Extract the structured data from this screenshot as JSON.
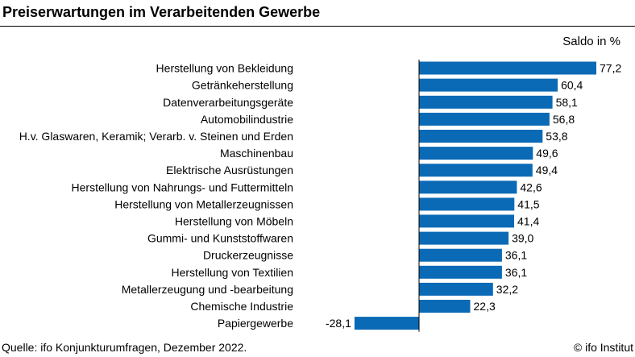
{
  "chart_data": {
    "type": "bar",
    "orientation": "horizontal",
    "title": "Preiserwartungen im Verarbeitenden Gewerbe",
    "unit_label": "Saldo in %",
    "categories": [
      "Herstellung von Bekleidung",
      "Getränkeherstellung",
      "Datenverarbeitungsgeräte",
      "Automobilindustrie",
      "H.v. Glaswaren, Keramik; Verarb. v. Steinen und Erden",
      "Maschinenbau",
      "Elektrische Ausrüstungen",
      "Herstellung von Nahrungs- und Futtermitteln",
      "Herstellung von Metallerzeugnissen",
      "Herstellung von Möbeln",
      "Gummi- und Kunststoffwaren",
      "Druckerzeugnisse",
      "Herstellung von Textilien",
      "Metallerzeugung und -bearbeitung",
      "Chemische Industrie",
      "Papiergewerbe"
    ],
    "values": [
      77.2,
      60.4,
      58.1,
      56.8,
      53.8,
      49.6,
      49.4,
      42.6,
      41.5,
      41.4,
      39.0,
      36.1,
      36.1,
      32.2,
      22.3,
      -28.1
    ],
    "value_labels": [
      "77,2",
      "60,4",
      "58,1",
      "56,8",
      "53,8",
      "49,6",
      "49,4",
      "42,6",
      "41,5",
      "41,4",
      "39,0",
      "36,1",
      "36,1",
      "32,2",
      "22,3",
      "-28,1"
    ],
    "bar_color": "#0b6ab6",
    "axis_color": "#000000",
    "grid": false,
    "legend": false
  },
  "footer": {
    "source": "Quelle: ifo Konjunkturumfragen, Dezember 2022.",
    "credit": "© ifo Institut"
  }
}
